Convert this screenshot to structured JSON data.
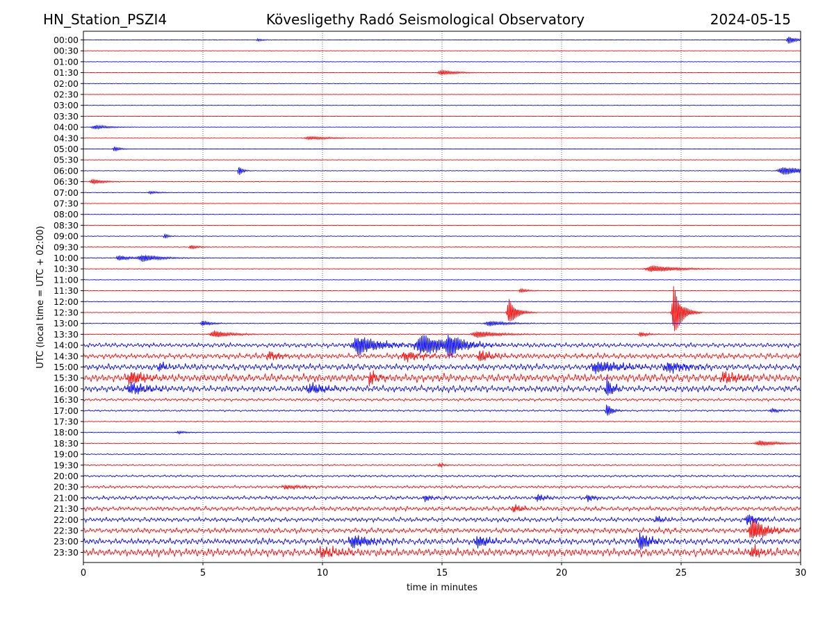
{
  "header": {
    "station": "HN_Station_PSZI4",
    "observatory": "Kövesligethy Radó Seismological Observatory",
    "date": "2024-05-15"
  },
  "chart_data": {
    "type": "line",
    "title": "Kövesligethy Radó Seismological Observatory",
    "xlabel": "time in minutes",
    "ylabel": "UTC (local time = UTC + 02:00)",
    "xlim": [
      0,
      30
    ],
    "xticks": [
      "0",
      "5",
      "10",
      "15",
      "20",
      "25",
      "30"
    ],
    "grid": "vertical dotted lines every 5 minutes",
    "colors": {
      "even_rows": "#0000ff",
      "odd_rows": "#ff0000"
    },
    "rows": [
      {
        "label": "00:00",
        "noise": 0.25,
        "events": [
          {
            "t": 7.3,
            "amp": 2,
            "dur": 0.3
          },
          {
            "t": 29.5,
            "amp": 6,
            "dur": 0.4
          }
        ]
      },
      {
        "label": "00:30",
        "noise": 0.2,
        "events": []
      },
      {
        "label": "01:00",
        "noise": 0.25,
        "events": []
      },
      {
        "label": "01:30",
        "noise": 0.2,
        "events": [
          {
            "t": 15.0,
            "amp": 4,
            "dur": 0.8
          }
        ]
      },
      {
        "label": "02:00",
        "noise": 0.25,
        "events": []
      },
      {
        "label": "02:30",
        "noise": 0.2,
        "events": []
      },
      {
        "label": "03:00",
        "noise": 0.25,
        "events": []
      },
      {
        "label": "03:30",
        "noise": 0.2,
        "events": []
      },
      {
        "label": "04:00",
        "noise": 0.2,
        "events": [
          {
            "t": 0.5,
            "amp": 3,
            "dur": 0.8
          }
        ]
      },
      {
        "label": "04:30",
        "noise": 0.2,
        "events": [
          {
            "t": 9.5,
            "amp": 2.5,
            "dur": 1.2
          }
        ]
      },
      {
        "label": "05:00",
        "noise": 0.2,
        "events": [
          {
            "t": 1.3,
            "amp": 4,
            "dur": 0.3
          }
        ]
      },
      {
        "label": "05:30",
        "noise": 0.2,
        "events": []
      },
      {
        "label": "06:00",
        "noise": 0.3,
        "events": [
          {
            "t": 6.5,
            "amp": 8,
            "dur": 0.2
          },
          {
            "t": 29.3,
            "amp": 6,
            "dur": 1.2
          }
        ]
      },
      {
        "label": "06:30",
        "noise": 0.3,
        "events": [
          {
            "t": 0.4,
            "amp": 4,
            "dur": 0.6
          }
        ]
      },
      {
        "label": "07:00",
        "noise": 0.25,
        "events": [
          {
            "t": 2.8,
            "amp": 2,
            "dur": 0.5
          }
        ]
      },
      {
        "label": "07:30",
        "noise": 0.2,
        "events": []
      },
      {
        "label": "08:00",
        "noise": 0.25,
        "events": []
      },
      {
        "label": "08:30",
        "noise": 0.2,
        "events": []
      },
      {
        "label": "09:00",
        "noise": 0.35,
        "events": [
          {
            "t": 3.4,
            "amp": 4,
            "dur": 0.2
          }
        ]
      },
      {
        "label": "09:30",
        "noise": 0.4,
        "events": [
          {
            "t": 4.5,
            "amp": 3,
            "dur": 0.4
          }
        ]
      },
      {
        "label": "10:00",
        "noise": 0.4,
        "events": [
          {
            "t": 1.5,
            "amp": 4,
            "dur": 0.6
          },
          {
            "t": 2.5,
            "amp": 5,
            "dur": 1.0
          }
        ]
      },
      {
        "label": "10:30",
        "noise": 0.3,
        "events": [
          {
            "t": 23.8,
            "amp": 5,
            "dur": 1.4
          }
        ]
      },
      {
        "label": "11:00",
        "noise": 0.25,
        "events": []
      },
      {
        "label": "11:30",
        "noise": 0.3,
        "events": [
          {
            "t": 18.3,
            "amp": 3,
            "dur": 0.4
          }
        ]
      },
      {
        "label": "12:00",
        "noise": 0.35,
        "events": []
      },
      {
        "label": "12:30",
        "noise": 0.3,
        "events": [
          {
            "t": 17.8,
            "amp": 20,
            "dur": 0.4
          },
          {
            "t": 24.7,
            "amp": 40,
            "dur": 0.4
          }
        ]
      },
      {
        "label": "13:00",
        "noise": 0.4,
        "events": [
          {
            "t": 5.0,
            "amp": 4,
            "dur": 0.5
          },
          {
            "t": 17.0,
            "amp": 4,
            "dur": 1.0
          }
        ]
      },
      {
        "label": "13:30",
        "noise": 0.5,
        "events": [
          {
            "t": 5.5,
            "amp": 5,
            "dur": 1.0
          },
          {
            "t": 16.5,
            "amp": 5,
            "dur": 1.2
          },
          {
            "t": 23.3,
            "amp": 4,
            "dur": 0.4
          }
        ]
      },
      {
        "label": "14:00",
        "noise": 2.5,
        "events": [
          {
            "t": 11.5,
            "amp": 14,
            "dur": 1.2
          },
          {
            "t": 14.2,
            "amp": 14,
            "dur": 1.5
          },
          {
            "t": 15.3,
            "amp": 14,
            "dur": 0.6
          }
        ]
      },
      {
        "label": "14:30",
        "noise": 3.0,
        "events": [
          {
            "t": 7.8,
            "amp": 6,
            "dur": 0.6
          },
          {
            "t": 13.5,
            "amp": 6,
            "dur": 1.0
          },
          {
            "t": 16.6,
            "amp": 8,
            "dur": 0.6
          }
        ]
      },
      {
        "label": "15:00",
        "noise": 3.5,
        "events": [
          {
            "t": 3.2,
            "amp": 6,
            "dur": 0.5
          },
          {
            "t": 21.5,
            "amp": 8,
            "dur": 1.5
          },
          {
            "t": 24.5,
            "amp": 7,
            "dur": 1.0
          }
        ]
      },
      {
        "label": "15:30",
        "noise": 4.5,
        "events": [
          {
            "t": 2.0,
            "amp": 10,
            "dur": 0.8
          },
          {
            "t": 12.0,
            "amp": 10,
            "dur": 0.4
          },
          {
            "t": 26.8,
            "amp": 8,
            "dur": 0.8
          }
        ]
      },
      {
        "label": "16:00",
        "noise": 3.5,
        "events": [
          {
            "t": 2.0,
            "amp": 8,
            "dur": 1.0
          },
          {
            "t": 9.5,
            "amp": 7,
            "dur": 1.0
          },
          {
            "t": 21.9,
            "amp": 16,
            "dur": 0.3
          }
        ]
      },
      {
        "label": "16:30",
        "noise": 1.5,
        "events": []
      },
      {
        "label": "17:00",
        "noise": 1.0,
        "events": [
          {
            "t": 21.9,
            "amp": 10,
            "dur": 0.3
          },
          {
            "t": 28.8,
            "amp": 3,
            "dur": 0.5
          }
        ]
      },
      {
        "label": "17:30",
        "noise": 0.5,
        "events": []
      },
      {
        "label": "18:00",
        "noise": 0.4,
        "events": [
          {
            "t": 4.0,
            "amp": 2,
            "dur": 0.5
          }
        ]
      },
      {
        "label": "18:30",
        "noise": 0.4,
        "events": [
          {
            "t": 28.3,
            "amp": 4,
            "dur": 1.0
          }
        ]
      },
      {
        "label": "19:00",
        "noise": 0.6,
        "events": []
      },
      {
        "label": "19:30",
        "noise": 0.8,
        "events": [
          {
            "t": 14.9,
            "amp": 3,
            "dur": 0.3
          }
        ]
      },
      {
        "label": "20:00",
        "noise": 1.2,
        "events": []
      },
      {
        "label": "20:30",
        "noise": 1.5,
        "events": [
          {
            "t": 8.5,
            "amp": 3,
            "dur": 1.0
          }
        ]
      },
      {
        "label": "21:00",
        "noise": 2.0,
        "events": [
          {
            "t": 14.3,
            "amp": 5,
            "dur": 0.4
          },
          {
            "t": 19.0,
            "amp": 5,
            "dur": 0.5
          },
          {
            "t": 21.1,
            "amp": 5,
            "dur": 0.4
          }
        ]
      },
      {
        "label": "21:30",
        "noise": 2.5,
        "events": [
          {
            "t": 18.0,
            "amp": 5,
            "dur": 0.6
          }
        ]
      },
      {
        "label": "22:00",
        "noise": 2.5,
        "events": [
          {
            "t": 24.0,
            "amp": 4,
            "dur": 0.6
          },
          {
            "t": 27.8,
            "amp": 8,
            "dur": 0.5
          }
        ]
      },
      {
        "label": "22:30",
        "noise": 3.0,
        "events": [
          {
            "t": 28.0,
            "amp": 16,
            "dur": 0.8
          }
        ]
      },
      {
        "label": "23:00",
        "noise": 3.5,
        "events": [
          {
            "t": 11.3,
            "amp": 9,
            "dur": 1.0
          },
          {
            "t": 16.5,
            "amp": 9,
            "dur": 0.6
          },
          {
            "t": 23.3,
            "amp": 14,
            "dur": 0.5
          }
        ]
      },
      {
        "label": "23:30",
        "noise": 4.5,
        "events": [
          {
            "t": 10.0,
            "amp": 6,
            "dur": 1.2
          },
          {
            "t": 28.0,
            "amp": 8,
            "dur": 0.6
          }
        ]
      }
    ]
  }
}
